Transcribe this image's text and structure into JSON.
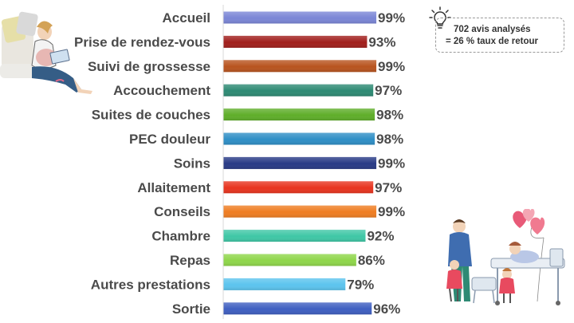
{
  "note": {
    "line1": "702 avis analysés",
    "line2": "= 26 % taux de retour",
    "icon": "lightbulb-icon"
  },
  "illustrations": {
    "left": "pregnant-woman-reading-illustration",
    "right": "family-with-newborn-illustration"
  },
  "chart_data": {
    "type": "bar",
    "orientation": "horizontal",
    "categories": [
      "Accueil",
      "Prise de rendez-vous",
      "Suivi de grossesse",
      "Accouchement",
      "Suites de couches",
      "PEC douleur",
      "Soins",
      "Allaitement",
      "Conseils",
      "Chambre",
      "Repas",
      "Autres prestations",
      "Sortie"
    ],
    "values": [
      99,
      93,
      99,
      97,
      98,
      98,
      99,
      97,
      99,
      92,
      86,
      79,
      96
    ],
    "value_labels": [
      "99%",
      "93%",
      "99%",
      "97%",
      "98%",
      "98%",
      "99%",
      "97%",
      "99%",
      "92%",
      "86%",
      "79%",
      "96%"
    ],
    "colors": [
      "#7b86d6",
      "#a11f1c",
      "#b8541f",
      "#2e8a74",
      "#5fae2a",
      "#2f8fc6",
      "#283a86",
      "#e8341f",
      "#ef7d22",
      "#3fc7a6",
      "#8fd64a",
      "#5cc4ee",
      "#3f5fc1"
    ],
    "xlim": [
      0,
      100
    ],
    "grid": false,
    "legend": "none",
    "title": "",
    "xlabel": "",
    "ylabel": ""
  }
}
